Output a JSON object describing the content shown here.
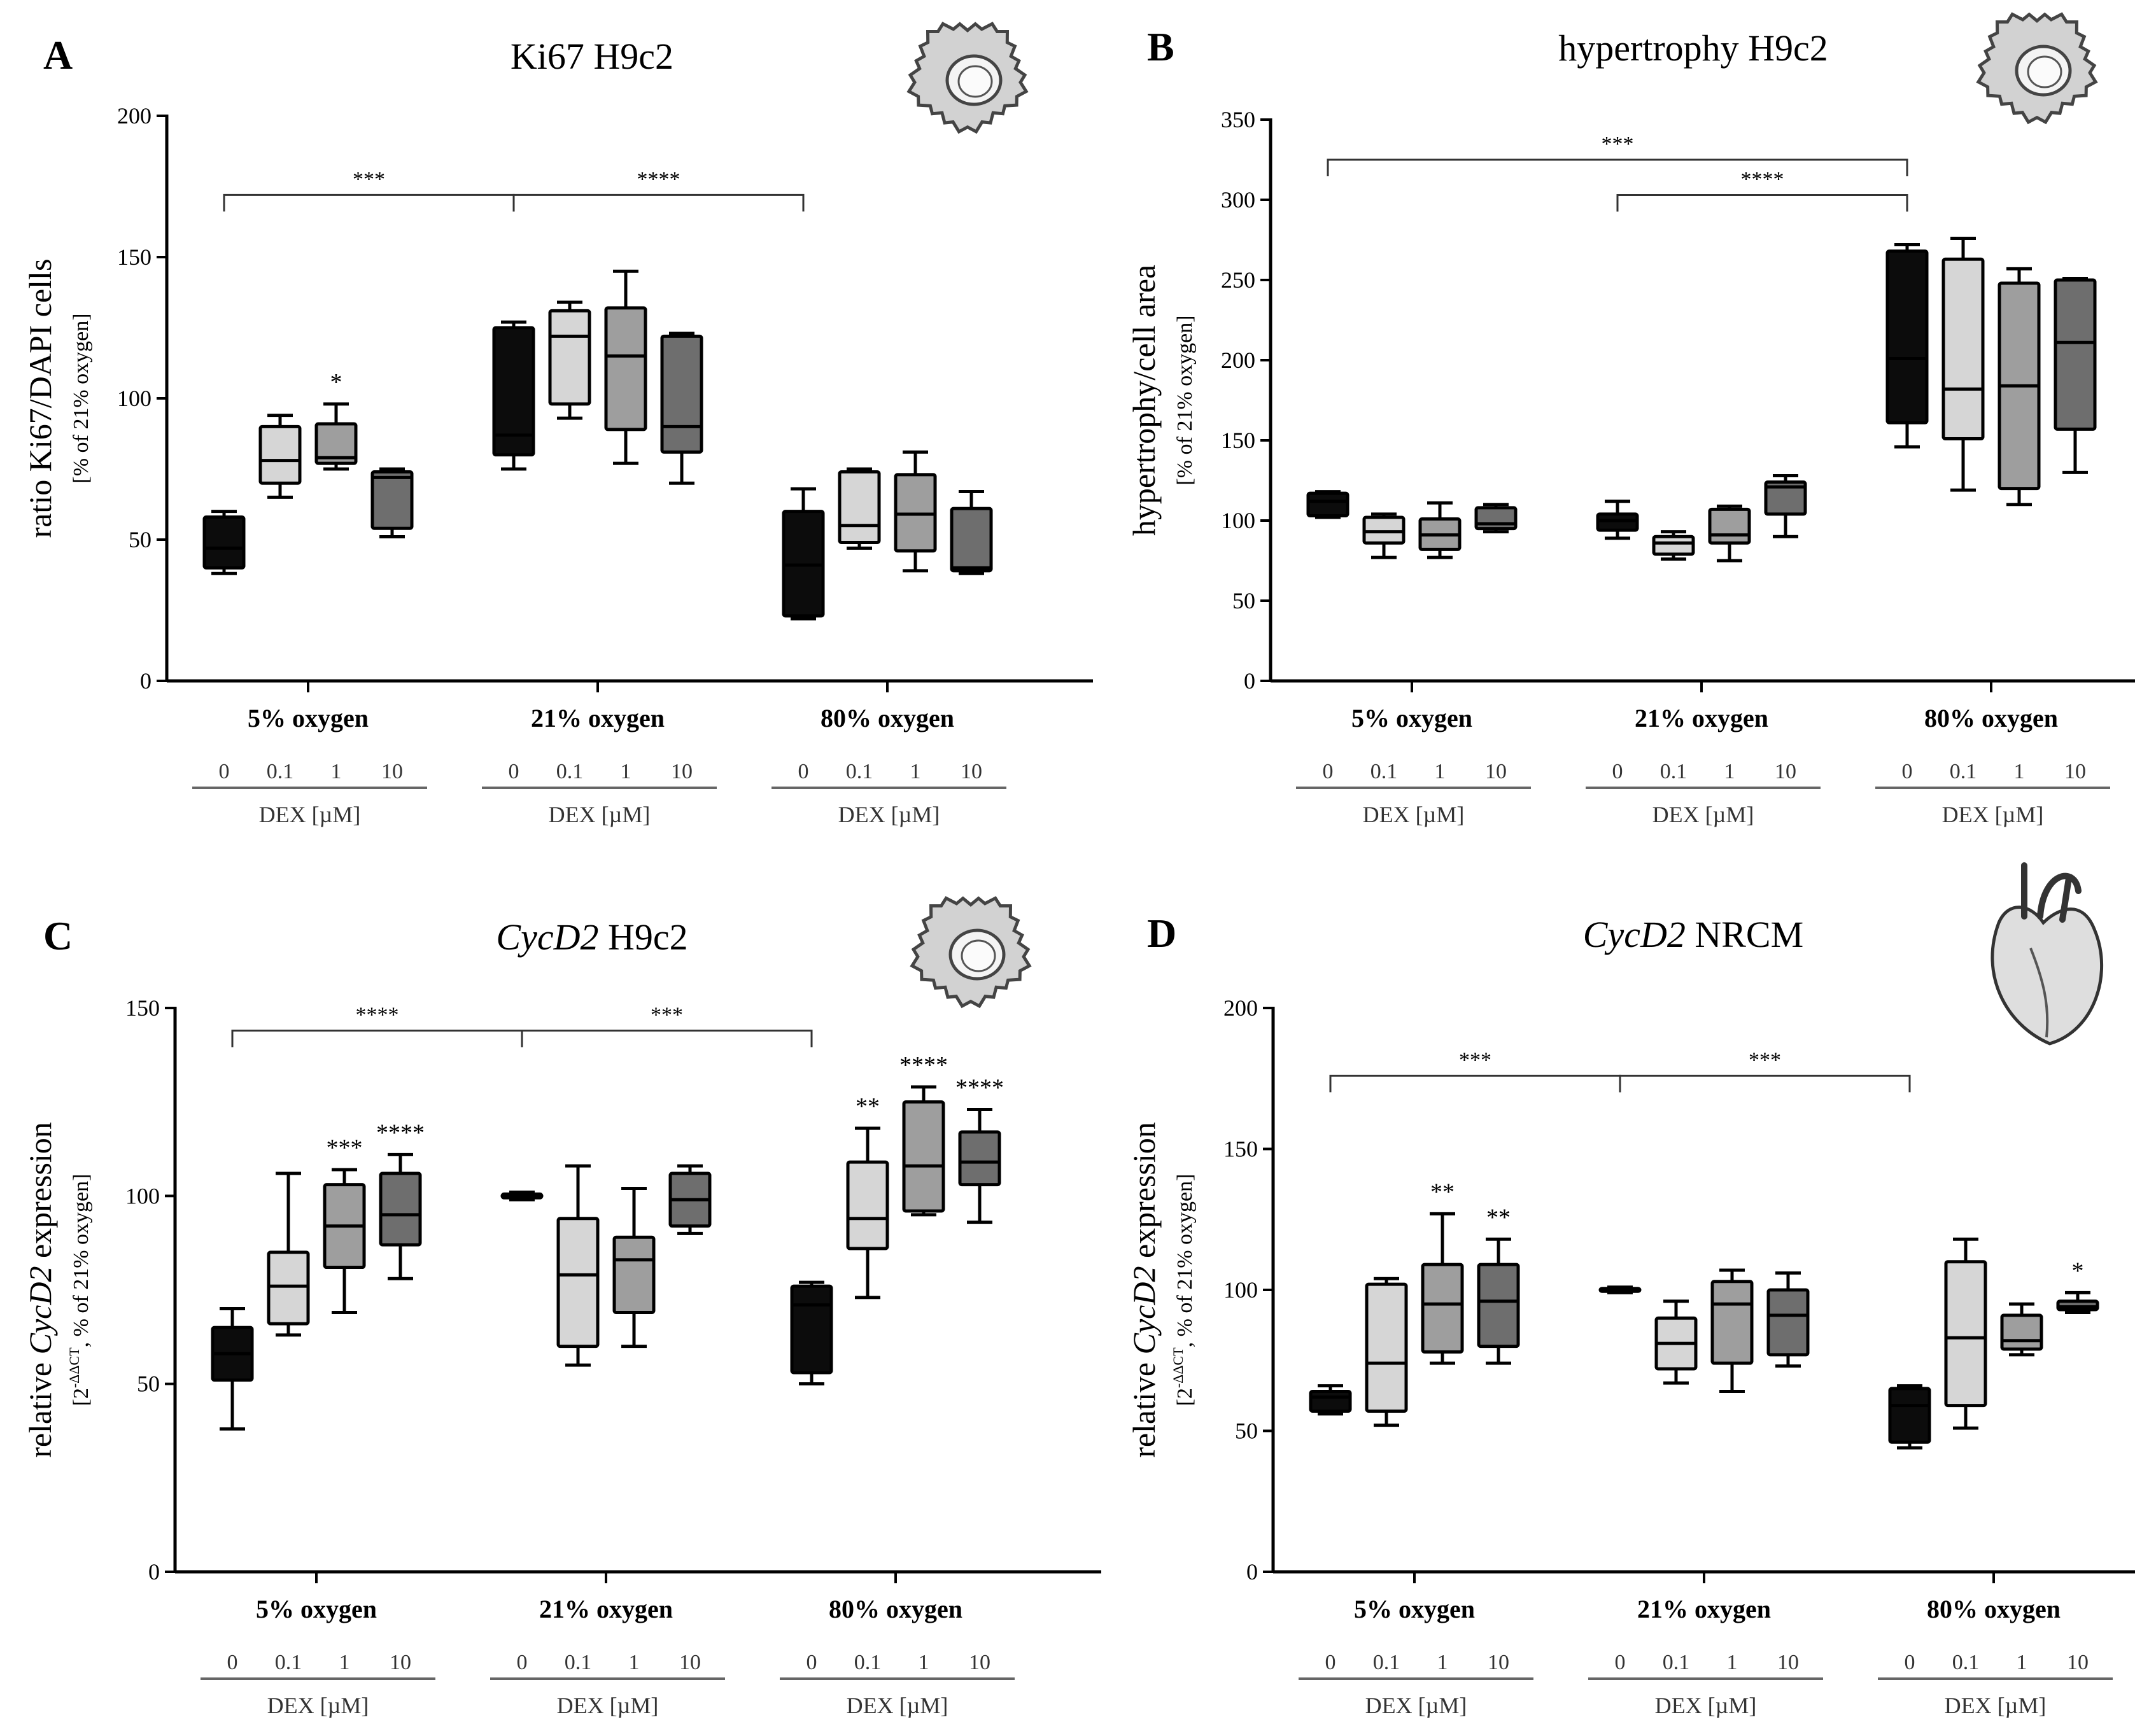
{
  "colors": {
    "dex_0": "#0c0c0c",
    "dex_0_1": "#d6d6d6",
    "dex_1": "#9e9e9e",
    "dex_10": "#6e6e6e",
    "axis": "#000000",
    "subaxis": "#666666",
    "cell_icon": "#d2d2d2"
  },
  "dex_levels": [
    "0",
    "0.1",
    "1",
    "10"
  ],
  "dex_label": "DEX [µM]",
  "groups": [
    "5% oxygen",
    "21% oxygen",
    "80% oxygen"
  ],
  "chart_data": [
    {
      "id": "A",
      "panel_letter": "A",
      "type": "box",
      "title": {
        "italic": "",
        "rest": "Ki67 H9c2"
      },
      "ylabel": "ratio Ki67/DAPI cells",
      "ylabel_sub": {
        "base": "[% of 21% oxygen]",
        "sup": "",
        "after": ""
      },
      "ylim": [
        0,
        200
      ],
      "yticks": [
        0,
        50,
        100,
        150,
        200
      ],
      "icon": "cell-icon",
      "boxes": [
        [
          [
            38,
            40,
            47,
            58,
            60
          ],
          [
            65,
            70,
            78,
            90,
            94
          ],
          [
            75,
            77,
            79,
            91,
            98
          ],
          [
            51,
            54,
            72,
            74,
            75
          ]
        ],
        [
          [
            75,
            80,
            87,
            125,
            127
          ],
          [
            93,
            98,
            122,
            131,
            134
          ],
          [
            77,
            89,
            115,
            132,
            145
          ],
          [
            70,
            81,
            90,
            122,
            123
          ]
        ],
        [
          [
            22,
            23,
            41,
            60,
            68
          ],
          [
            47,
            49,
            55,
            74,
            75
          ],
          [
            39,
            46,
            59,
            73,
            81
          ],
          [
            38,
            39,
            40,
            61,
            67
          ]
        ]
      ],
      "box_labels": [
        [
          "",
          "",
          "*",
          ""
        ],
        [
          "",
          "",
          "",
          ""
        ],
        [
          "",
          "",
          "",
          ""
        ]
      ],
      "brackets": [
        {
          "from": [
            0,
            0
          ],
          "to": [
            1,
            0
          ],
          "y": 172,
          "label": "***"
        },
        {
          "from": [
            1,
            0
          ],
          "to": [
            2,
            0
          ],
          "y": 172,
          "label": "****"
        }
      ]
    },
    {
      "id": "B",
      "panel_letter": "B",
      "type": "box",
      "title": {
        "italic": "",
        "rest": "hypertrophy H9c2"
      },
      "ylabel": "hypertrophy/cell area",
      "ylabel_sub": {
        "base": "[% of 21% oxygen]",
        "sup": "",
        "after": ""
      },
      "ylim": [
        0,
        350
      ],
      "yticks": [
        0,
        50,
        100,
        150,
        200,
        250,
        300,
        350
      ],
      "icon": "cell-icon",
      "boxes": [
        [
          [
            102,
            103,
            112,
            117,
            118
          ],
          [
            77,
            86,
            93,
            102,
            104
          ],
          [
            77,
            82,
            91,
            101,
            111
          ],
          [
            93,
            95,
            98,
            108,
            110
          ]
        ],
        [
          [
            89,
            94,
            100,
            104,
            112
          ],
          [
            76,
            79,
            86,
            90,
            93
          ],
          [
            75,
            86,
            91,
            107,
            109
          ],
          [
            90,
            104,
            121,
            124,
            128
          ]
        ],
        [
          [
            146,
            161,
            201,
            268,
            272
          ],
          [
            119,
            151,
            182,
            263,
            276
          ],
          [
            110,
            120,
            184,
            248,
            257
          ],
          [
            130,
            157,
            211,
            250,
            251
          ]
        ]
      ],
      "box_labels": [
        [
          "",
          "",
          "",
          ""
        ],
        [
          "",
          "",
          "",
          ""
        ],
        [
          "",
          "",
          "",
          ""
        ]
      ],
      "brackets": [
        {
          "from": [
            0,
            0
          ],
          "to": [
            2,
            0
          ],
          "y": 325,
          "label": "***"
        },
        {
          "from": [
            1,
            0
          ],
          "to": [
            2,
            0
          ],
          "y": 303,
          "label": "****"
        }
      ]
    },
    {
      "id": "C",
      "panel_letter": "C",
      "type": "box",
      "title": {
        "italic": "CycD2",
        "rest": " H9c2"
      },
      "ylabel": "relative CycD2 expression",
      "ylabel_sub": {
        "base": "[2",
        "sup": "-ΔΔCT",
        "after": ", % of 21% oxygen]"
      },
      "ylim": [
        0,
        150
      ],
      "yticks": [
        0,
        50,
        100,
        150
      ],
      "icon": "cell-icon",
      "boxes": [
        [
          [
            38,
            51,
            58,
            65,
            70
          ],
          [
            63,
            66,
            76,
            85,
            106
          ],
          [
            69,
            81,
            92,
            103,
            107
          ],
          [
            78,
            87,
            95,
            106,
            111
          ]
        ],
        [
          [
            99,
            99.5,
            100,
            100.5,
            101
          ],
          [
            55,
            60,
            79,
            94,
            108
          ],
          [
            60,
            69,
            83,
            89,
            102
          ],
          [
            90,
            92,
            99,
            106,
            108
          ]
        ],
        [
          [
            50,
            53,
            71,
            76,
            77
          ],
          [
            73,
            86,
            94,
            109,
            118
          ],
          [
            95,
            96,
            108,
            125,
            129
          ],
          [
            93,
            103,
            109,
            117,
            123
          ]
        ]
      ],
      "box_labels": [
        [
          "",
          "",
          "***",
          "****"
        ],
        [
          "",
          "",
          "",
          ""
        ],
        [
          "",
          "**",
          "****",
          "****"
        ]
      ],
      "brackets": [
        {
          "from": [
            0,
            0
          ],
          "to": [
            1,
            0
          ],
          "y": 144,
          "label": "****"
        },
        {
          "from": [
            1,
            0
          ],
          "to": [
            2,
            0
          ],
          "y": 144,
          "label": "***"
        }
      ]
    },
    {
      "id": "D",
      "panel_letter": "D",
      "type": "box",
      "title": {
        "italic": "CycD2",
        "rest": " NRCM"
      },
      "ylabel": "relative CycD2 expression",
      "ylabel_sub": {
        "base": "[2",
        "sup": "-ΔΔCT",
        "after": ", % of 21% oxygen]"
      },
      "ylim": [
        0,
        200
      ],
      "yticks": [
        0,
        50,
        100,
        150,
        200
      ],
      "icon": "heart-icon",
      "boxes": [
        [
          [
            56,
            57,
            62,
            64,
            66
          ],
          [
            52,
            57,
            74,
            102,
            104
          ],
          [
            74,
            78,
            95,
            109,
            127
          ],
          [
            74,
            80,
            96,
            109,
            118
          ]
        ],
        [
          [
            99,
            99.5,
            100,
            100.5,
            101
          ],
          [
            67,
            72,
            81,
            90,
            96
          ],
          [
            64,
            74,
            95,
            103,
            107
          ],
          [
            73,
            77,
            91,
            100,
            106
          ]
        ],
        [
          [
            44,
            46,
            59,
            65,
            66
          ],
          [
            51,
            59,
            83,
            110,
            118
          ],
          [
            77,
            79,
            82,
            91,
            95
          ],
          [
            92,
            93,
            94,
            96,
            99
          ]
        ]
      ],
      "box_labels": [
        [
          "",
          "",
          "**",
          "**"
        ],
        [
          "",
          "",
          "",
          ""
        ],
        [
          "",
          "",
          "",
          "*"
        ]
      ],
      "brackets": [
        {
          "from": [
            0,
            0
          ],
          "to": [
            1,
            0
          ],
          "y": 176,
          "label": "***"
        },
        {
          "from": [
            1,
            0
          ],
          "to": [
            2,
            0
          ],
          "y": 176,
          "label": "***"
        }
      ]
    }
  ]
}
